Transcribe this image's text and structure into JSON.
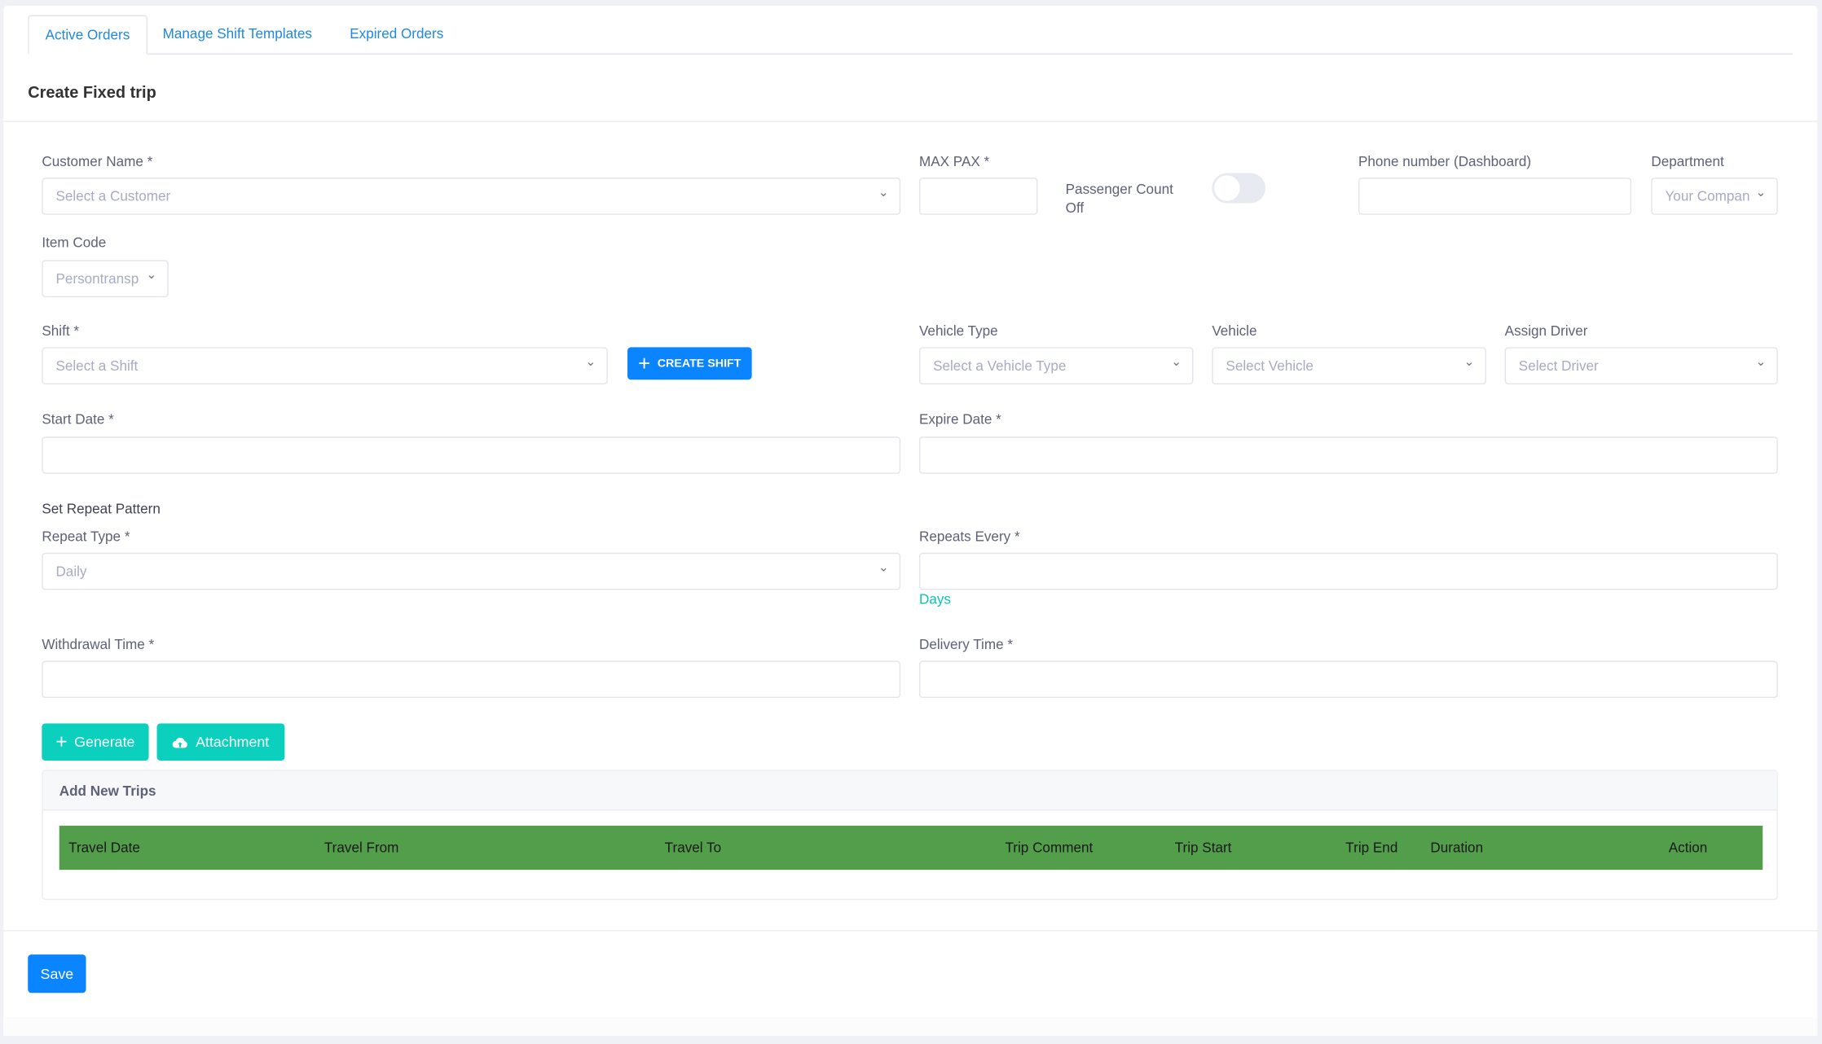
{
  "tabs": [
    {
      "label": "Active Orders",
      "active": true
    },
    {
      "label": "Manage Shift Templates"
    },
    {
      "label": "Expired Orders"
    }
  ],
  "title": "Create Fixed trip",
  "form": {
    "customer": {
      "label": "Customer Name *",
      "placeholder": "Select a Customer"
    },
    "max_pax": {
      "label": "MAX PAX *",
      "value": ""
    },
    "passenger_count": {
      "label": "Passenger Count",
      "state": "Off",
      "on": false
    },
    "phone": {
      "label": "Phone number (Dashboard)",
      "value": ""
    },
    "department": {
      "label": "Department",
      "value": "Your Compan"
    },
    "item_code": {
      "label": "Item Code",
      "value": "Persontransp"
    },
    "shift": {
      "label": "Shift *",
      "placeholder": "Select a Shift"
    },
    "create_shift": "CREATE SHIFT",
    "vehicle_type": {
      "label": "Vehicle Type",
      "placeholder": "Select a Vehicle Type"
    },
    "vehicle": {
      "label": "Vehicle",
      "placeholder": "Select Vehicle"
    },
    "driver": {
      "label": "Assign Driver",
      "placeholder": "Select Driver"
    },
    "start_date": {
      "label": "Start Date *",
      "value": ""
    },
    "expire_date": {
      "label": "Expire Date *",
      "value": ""
    },
    "repeat_section": "Set Repeat Pattern",
    "repeat_type": {
      "label": "Repeat Type *",
      "value": "Daily"
    },
    "repeats_every": {
      "label": "Repeats Every *",
      "value": "",
      "unit": "Days"
    },
    "withdrawal": {
      "label": "Withdrawal Time *",
      "value": ""
    },
    "delivery": {
      "label": "Delivery Time *",
      "value": ""
    }
  },
  "buttons": {
    "generate": "Generate",
    "attachment": "Attachment",
    "save": "Save"
  },
  "trips": {
    "title": "Add New Trips",
    "columns": [
      "Travel Date",
      "Travel From",
      "Travel To",
      "Trip Comment",
      "Trip Start",
      "Trip End",
      "Duration",
      "Action"
    ]
  },
  "colors": {
    "accent": "#0a84ff",
    "teal": "#0bd0be",
    "table_header": "#529e4a",
    "tab_link": "#1e88e5"
  }
}
